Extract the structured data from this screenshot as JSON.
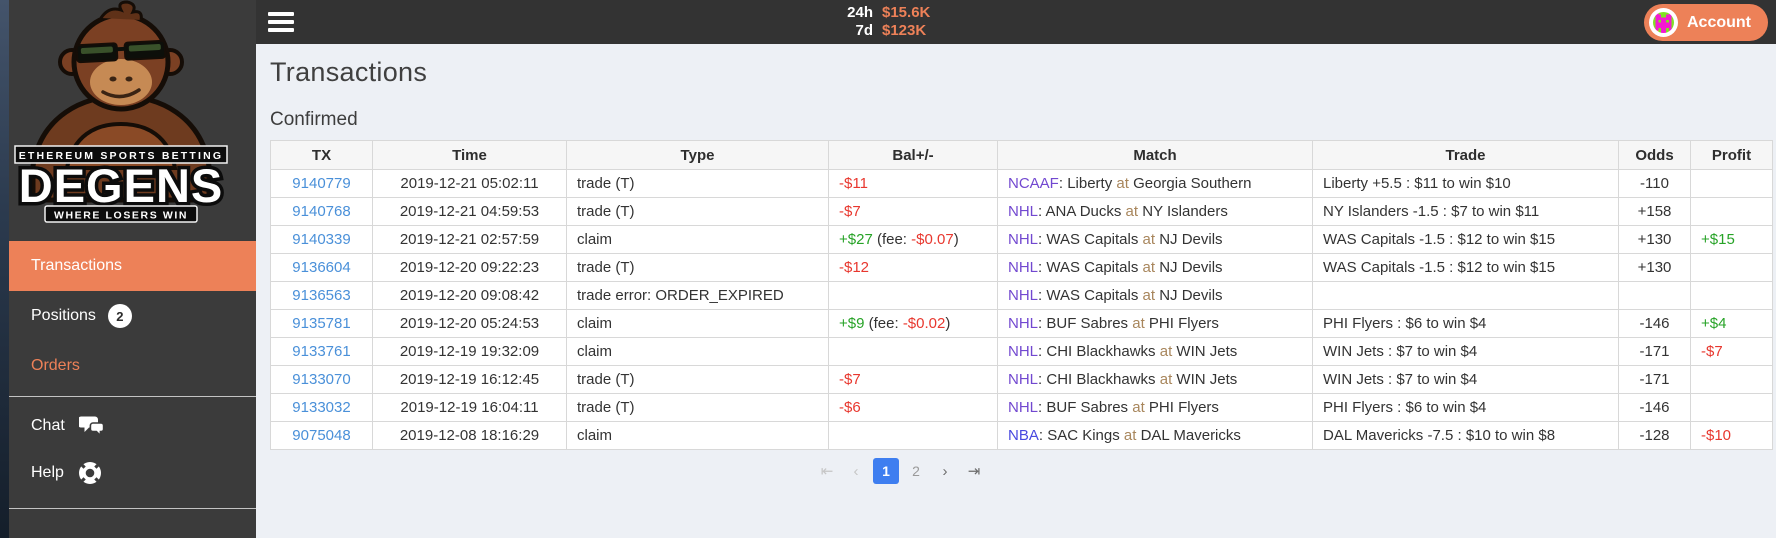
{
  "topbar": {
    "stats": [
      {
        "label": "24h",
        "value": "$15.6K"
      },
      {
        "label": "7d",
        "value": "$123K"
      }
    ],
    "account_label": "Account",
    "avatar": {
      "palette": {
        "0": "#7fe124",
        "1": "#f31bd2",
        "2": "#f59a1f"
      },
      "grid": [
        "21000012",
        "01100110",
        "01111110",
        "01011010",
        "01111110",
        "01111110",
        "01011010",
        "02011020"
      ]
    }
  },
  "sidebar": {
    "logo": {
      "tagline_top": "ETHEREUM SPORTS BETTING",
      "name": "DEGENS",
      "tagline_bottom": "WHERE LOSERS WIN"
    },
    "items": [
      {
        "label": "Transactions"
      },
      {
        "label": "Positions",
        "badge": "2"
      },
      {
        "label": "Orders"
      },
      {
        "label": "Chat"
      },
      {
        "label": "Help"
      }
    ]
  },
  "page": {
    "title": "Transactions",
    "section": "Confirmed"
  },
  "table": {
    "columns": [
      "TX",
      "Time",
      "Type",
      "Bal+/-",
      "Match",
      "Trade",
      "Odds",
      "Profit"
    ],
    "rows": [
      {
        "tx": "9140779",
        "time": "2019-12-21 05:02:11",
        "type": "trade (T)",
        "bal": {
          "amount": "-$11"
        },
        "match": {
          "league": "NCAAF",
          "away": "Liberty",
          "home": "Georgia Southern"
        },
        "trade": "Liberty +5.5 : $11 to win $10",
        "odds": "-110",
        "profit": ""
      },
      {
        "tx": "9140768",
        "time": "2019-12-21 04:59:53",
        "type": "trade (T)",
        "bal": {
          "amount": "-$7"
        },
        "match": {
          "league": "NHL",
          "away": "ANA Ducks",
          "home": "NY Islanders"
        },
        "trade": "NY Islanders -1.5 : $7 to win $11",
        "odds": "+158",
        "profit": ""
      },
      {
        "tx": "9140339",
        "time": "2019-12-21 02:57:59",
        "type": "claim",
        "bal": {
          "amount": "+$27",
          "fee": "-$0.07"
        },
        "match": {
          "league": "NHL",
          "away": "WAS Capitals",
          "home": "NJ Devils"
        },
        "trade": "WAS Capitals -1.5 : $12 to win $15",
        "odds": "+130",
        "profit": "+$15"
      },
      {
        "tx": "9136604",
        "time": "2019-12-20 09:22:23",
        "type": "trade (T)",
        "bal": {
          "amount": "-$12"
        },
        "match": {
          "league": "NHL",
          "away": "WAS Capitals",
          "home": "NJ Devils"
        },
        "trade": "WAS Capitals -1.5 : $12 to win $15",
        "odds": "+130",
        "profit": ""
      },
      {
        "tx": "9136563",
        "time": "2019-12-20 09:08:42",
        "type": "trade error: ORDER_EXPIRED",
        "bal": {},
        "match": {
          "league": "NHL",
          "away": "WAS Capitals",
          "home": "NJ Devils"
        },
        "trade": "",
        "odds": "",
        "profit": ""
      },
      {
        "tx": "9135781",
        "time": "2019-12-20 05:24:53",
        "type": "claim",
        "bal": {
          "amount": "+$9",
          "fee": "-$0.02"
        },
        "match": {
          "league": "NHL",
          "away": "BUF Sabres",
          "home": "PHI Flyers"
        },
        "trade": "PHI Flyers : $6 to win $4",
        "odds": "-146",
        "profit": "+$4"
      },
      {
        "tx": "9133761",
        "time": "2019-12-19 19:32:09",
        "type": "claim",
        "bal": {},
        "match": {
          "league": "NHL",
          "away": "CHI Blackhawks",
          "home": "WIN Jets"
        },
        "trade": "WIN Jets : $7 to win $4",
        "odds": "-171",
        "profit": "-$7"
      },
      {
        "tx": "9133070",
        "time": "2019-12-19 16:12:45",
        "type": "trade (T)",
        "bal": {
          "amount": "-$7"
        },
        "match": {
          "league": "NHL",
          "away": "CHI Blackhawks",
          "home": "WIN Jets"
        },
        "trade": "WIN Jets : $7 to win $4",
        "odds": "-171",
        "profit": ""
      },
      {
        "tx": "9133032",
        "time": "2019-12-19 16:04:11",
        "type": "trade (T)",
        "bal": {
          "amount": "-$6"
        },
        "match": {
          "league": "NHL",
          "away": "BUF Sabres",
          "home": "PHI Flyers"
        },
        "trade": "PHI Flyers : $6 to win $4",
        "odds": "-146",
        "profit": ""
      },
      {
        "tx": "9075048",
        "time": "2019-12-08 18:16:29",
        "type": "claim",
        "bal": {},
        "match": {
          "league": "NBA",
          "away": "SAC Kings",
          "home": "DAL Mavericks"
        },
        "trade": "DAL Mavericks -7.5 : $10 to win $8",
        "odds": "-128",
        "profit": "-$10"
      }
    ],
    "fee_prefix": " (fee: ",
    "fee_suffix": ")",
    "at_word": " at "
  },
  "pagination": {
    "first_label": "⇤",
    "prev_label": "‹",
    "pages": [
      "1",
      "2"
    ],
    "active_page": "1",
    "next_label": "›",
    "last_label": "⇥"
  },
  "colors": {
    "accent": "#ED8158",
    "positive": "#27a327",
    "negative": "#e8372e",
    "link": "#4a90d9",
    "at_word": "#a8865c",
    "leagues": {
      "NCAAF": "#7248d0",
      "NHL": "#7248d0",
      "NBA": "#4848e0"
    },
    "pagination_active": "#3e7ef0"
  }
}
